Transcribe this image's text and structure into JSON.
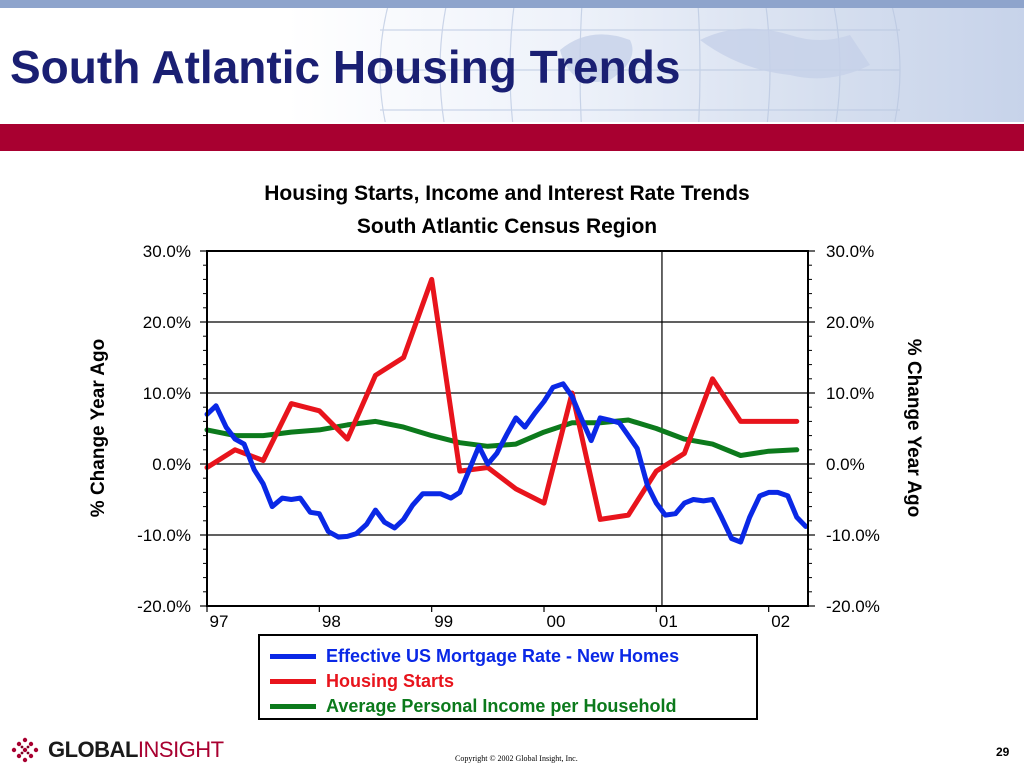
{
  "slide": {
    "title": "South Atlantic Housing Trends",
    "copyright": "Copyright © 2002 Global Insight, Inc.",
    "page_number": "29",
    "logo": {
      "word_a": "GLOBAL",
      "word_b": "INSIGHT"
    }
  },
  "colors": {
    "title": "#1a1f73",
    "red_bar": "#a80030",
    "mortgage": "#0a28e6",
    "starts": "#e8141c",
    "income": "#0c7a1c"
  },
  "chart_data": {
    "type": "line",
    "title": "Housing Starts, Income and Interest Rate Trends",
    "subtitle": "South Atlantic Census Region",
    "ylabel": "% Change Year Ago",
    "ylabel_right": "% Change Year Ago",
    "ylim": [
      -20,
      30
    ],
    "xlim": [
      1997.0,
      2002.35
    ],
    "y_ticks": [
      30,
      20,
      10,
      0,
      -10,
      -20
    ],
    "y_tick_labels": [
      "30.0%",
      "20.0%",
      "10.0%",
      "0.0%",
      "-10.0%",
      "-20.0%"
    ],
    "x_ticks": [
      1997,
      1998,
      1999,
      2000,
      2001,
      2002
    ],
    "x_tick_labels": [
      "97",
      "98",
      "99",
      "00",
      "01",
      "02"
    ],
    "vertical_reference_line_x": 2001.05,
    "grid": "horizontal",
    "legend_position": "bottom-center",
    "series": [
      {
        "name": "Effective US Mortgage Rate - New Homes",
        "color": "#0a28e6",
        "x": [
          1997.0,
          1997.08,
          1997.17,
          1997.25,
          1997.33,
          1997.42,
          1997.5,
          1997.58,
          1997.67,
          1997.75,
          1997.83,
          1997.92,
          1998.0,
          1998.08,
          1998.17,
          1998.25,
          1998.33,
          1998.42,
          1998.5,
          1998.58,
          1998.67,
          1998.75,
          1998.83,
          1998.92,
          1999.0,
          1999.08,
          1999.17,
          1999.25,
          1999.33,
          1999.42,
          1999.5,
          1999.58,
          1999.67,
          1999.75,
          1999.83,
          1999.92,
          2000.0,
          2000.08,
          2000.17,
          2000.25,
          2000.33,
          2000.42,
          2000.5,
          2000.58,
          2000.67,
          2000.75,
          2000.83,
          2000.92,
          2001.0,
          2001.08,
          2001.17,
          2001.25,
          2001.33,
          2001.42,
          2001.5,
          2001.58,
          2001.67,
          2001.75,
          2001.83,
          2001.92,
          2002.0,
          2002.08,
          2002.17,
          2002.25,
          2002.33
        ],
        "values": [
          7.0,
          8.2,
          5.2,
          3.5,
          2.8,
          -0.8,
          -2.8,
          -6.0,
          -4.8,
          -5.0,
          -4.8,
          -6.8,
          -7.0,
          -9.5,
          -10.3,
          -10.2,
          -9.8,
          -8.5,
          -6.5,
          -8.2,
          -9.0,
          -7.8,
          -5.8,
          -4.2,
          -4.2,
          -4.2,
          -4.8,
          -4.0,
          -1.0,
          2.5,
          0.0,
          1.5,
          4.2,
          6.5,
          5.2,
          7.2,
          8.8,
          10.8,
          11.3,
          9.5,
          6.5,
          3.3,
          6.5,
          6.2,
          5.8,
          4.0,
          2.2,
          -3.0,
          -5.5,
          -7.2,
          -7.0,
          -5.5,
          -5.0,
          -5.2,
          -5.0,
          -7.5,
          -10.5,
          -11.0,
          -7.5,
          -4.5,
          -4.0,
          -4.0,
          -4.5,
          -7.5,
          -8.8
        ]
      },
      {
        "name": "Housing Starts",
        "color": "#e8141c",
        "x": [
          1997.0,
          1997.25,
          1997.5,
          1997.75,
          1998.0,
          1998.25,
          1998.5,
          1998.75,
          1999.0,
          1999.25,
          1999.5,
          1999.75,
          2000.0,
          2000.25,
          2000.5,
          2000.75,
          2001.0,
          2001.25,
          2001.5,
          2001.75,
          2002.0,
          2002.25
        ],
        "values": [
          -0.5,
          2.0,
          0.5,
          8.5,
          7.5,
          3.5,
          12.5,
          15.0,
          26.0,
          -1.0,
          -0.5,
          -3.5,
          -5.5,
          10.0,
          -7.8,
          -7.2,
          -1.0,
          1.5,
          12.0,
          6.0,
          6.0,
          6.0
        ]
      },
      {
        "name": "Average Personal Income per Household",
        "color": "#0c7a1c",
        "x": [
          1997.0,
          1997.25,
          1997.5,
          1997.75,
          1998.0,
          1998.25,
          1998.5,
          1998.75,
          1999.0,
          1999.25,
          1999.5,
          1999.75,
          2000.0,
          2000.25,
          2000.5,
          2000.75,
          2001.0,
          2001.25,
          2001.5,
          2001.75,
          2002.0,
          2002.25
        ],
        "values": [
          4.8,
          4.0,
          4.0,
          4.5,
          4.8,
          5.5,
          6.0,
          5.2,
          4.0,
          3.0,
          2.5,
          2.8,
          4.5,
          5.8,
          5.8,
          6.2,
          5.0,
          3.5,
          2.8,
          1.2,
          1.8,
          2.0
        ]
      }
    ]
  }
}
